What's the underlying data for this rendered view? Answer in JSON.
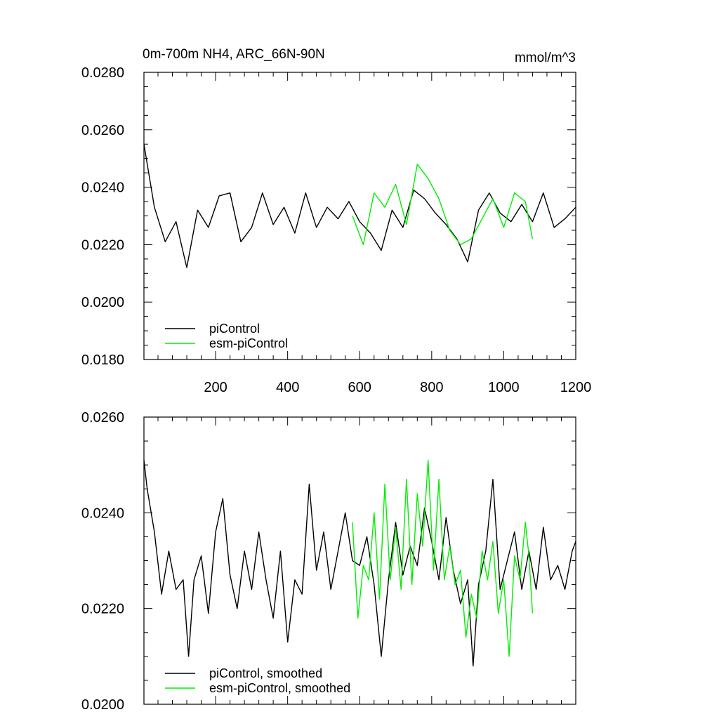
{
  "figure": {
    "title_left": "0m-700m NH4, ARC_66N-90N",
    "title_right": "mmol/m^3"
  },
  "colors": {
    "piControl": "#000000",
    "esm_piControl": "#00ee00"
  },
  "chart_data": [
    {
      "type": "line",
      "title": "0m-700m NH4, ARC_66N-90N",
      "units": "mmol/m^3",
      "xlim": [
        1,
        1200
      ],
      "ylim": [
        0.018,
        0.028
      ],
      "xticks": [
        200,
        400,
        600,
        800,
        1000,
        1200
      ],
      "xtick_labels": [
        "200",
        "400",
        "600",
        "800",
        "1000",
        "1200"
      ],
      "yticks": [
        0.018,
        0.02,
        0.022,
        0.024,
        0.026,
        0.028
      ],
      "ytick_labels": [
        "0.0180",
        "0.0200",
        "0.0220",
        "0.0240",
        "0.0260",
        "0.0280"
      ],
      "legend": {
        "placement": "bottom-left",
        "entries": [
          "piControl",
          "esm-piControl"
        ]
      },
      "series": [
        {
          "name": "piControl",
          "color": "#000000",
          "x": [
            1,
            30,
            60,
            90,
            120,
            150,
            180,
            210,
            240,
            270,
            300,
            330,
            360,
            390,
            420,
            450,
            480,
            510,
            540,
            570,
            600,
            630,
            660,
            690,
            720,
            750,
            780,
            810,
            840,
            870,
            900,
            930,
            960,
            990,
            1020,
            1050,
            1080,
            1110,
            1140,
            1170,
            1200
          ],
          "values": [
            0.0255,
            0.0233,
            0.0221,
            0.0228,
            0.0212,
            0.0232,
            0.0226,
            0.0237,
            0.0238,
            0.0221,
            0.0226,
            0.0238,
            0.0227,
            0.0233,
            0.0224,
            0.0238,
            0.0226,
            0.0233,
            0.0229,
            0.0235,
            0.0228,
            0.0224,
            0.0218,
            0.0232,
            0.0226,
            0.0239,
            0.0236,
            0.0231,
            0.0227,
            0.0222,
            0.0214,
            0.0232,
            0.0238,
            0.0231,
            0.0228,
            0.0234,
            0.0228,
            0.0238,
            0.0226,
            0.0229,
            0.0233
          ]
        },
        {
          "name": "esm-piControl",
          "color": "#00ee00",
          "x": [
            580,
            610,
            640,
            670,
            700,
            730,
            760,
            790,
            820,
            850,
            880,
            910,
            940,
            970,
            1000,
            1030,
            1060,
            1080
          ],
          "values": [
            0.023,
            0.022,
            0.0238,
            0.0233,
            0.0241,
            0.0227,
            0.0248,
            0.0243,
            0.0236,
            0.0225,
            0.022,
            0.0222,
            0.0229,
            0.0236,
            0.0226,
            0.0238,
            0.0235,
            0.0222
          ]
        }
      ]
    },
    {
      "type": "line",
      "xlim": [
        1,
        1200
      ],
      "ylim": [
        0.02,
        0.026
      ],
      "yticks": [
        0.02,
        0.022,
        0.024,
        0.026
      ],
      "ytick_labels": [
        "0.0200",
        "0.0220",
        "0.0240",
        "0.0260"
      ],
      "legend": {
        "placement": "bottom-left",
        "entries": [
          "piControl, smoothed",
          "esm-piControl, smoothed"
        ]
      },
      "series": [
        {
          "name": "piControl, smoothed",
          "color": "#000000",
          "x": [
            1,
            10,
            30,
            50,
            70,
            90,
            110,
            125,
            140,
            160,
            180,
            200,
            220,
            240,
            260,
            280,
            300,
            320,
            340,
            360,
            380,
            400,
            420,
            440,
            460,
            480,
            500,
            520,
            540,
            560,
            580,
            600,
            620,
            640,
            660,
            680,
            700,
            720,
            740,
            760,
            780,
            800,
            820,
            840,
            860,
            880,
            900,
            915,
            930,
            950,
            970,
            990,
            1010,
            1030,
            1050,
            1070,
            1090,
            1110,
            1130,
            1150,
            1170,
            1190,
            1200
          ],
          "values": [
            0.0251,
            0.0245,
            0.0236,
            0.0223,
            0.0232,
            0.0224,
            0.0226,
            0.021,
            0.0226,
            0.0231,
            0.0219,
            0.0236,
            0.0243,
            0.0227,
            0.022,
            0.0232,
            0.0224,
            0.0236,
            0.0226,
            0.0218,
            0.0232,
            0.0213,
            0.0226,
            0.0223,
            0.0246,
            0.0228,
            0.0236,
            0.0224,
            0.0232,
            0.024,
            0.023,
            0.0229,
            0.0235,
            0.0225,
            0.021,
            0.0226,
            0.0238,
            0.0227,
            0.0233,
            0.0229,
            0.0241,
            0.0234,
            0.0226,
            0.0239,
            0.0228,
            0.0221,
            0.0226,
            0.0208,
            0.0225,
            0.0232,
            0.0247,
            0.0224,
            0.023,
            0.0236,
            0.0224,
            0.0232,
            0.0224,
            0.0237,
            0.0226,
            0.0229,
            0.0224,
            0.0232,
            0.0234
          ]
        },
        {
          "name": "esm-piControl, smoothed",
          "color": "#00ee00",
          "x": [
            580,
            595,
            610,
            625,
            640,
            655,
            670,
            685,
            700,
            715,
            730,
            745,
            760,
            775,
            790,
            805,
            820,
            835,
            850,
            865,
            880,
            895,
            910,
            925,
            940,
            955,
            970,
            985,
            1000,
            1015,
            1030,
            1045,
            1060,
            1070,
            1080
          ],
          "values": [
            0.0238,
            0.0218,
            0.0229,
            0.0226,
            0.024,
            0.0222,
            0.0246,
            0.0226,
            0.0237,
            0.0224,
            0.0247,
            0.0225,
            0.0244,
            0.0233,
            0.0251,
            0.0228,
            0.0247,
            0.0226,
            0.0233,
            0.0225,
            0.0228,
            0.0214,
            0.0223,
            0.0218,
            0.0232,
            0.0226,
            0.0234,
            0.0219,
            0.0226,
            0.021,
            0.0231,
            0.0226,
            0.0238,
            0.0231,
            0.0219
          ]
        }
      ]
    }
  ]
}
